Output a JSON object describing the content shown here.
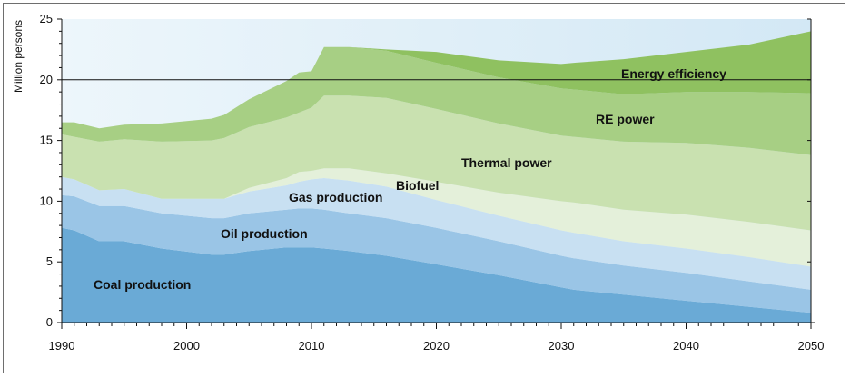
{
  "chart_data": {
    "type": "area",
    "stacked": true,
    "title": "",
    "xlabel": "",
    "ylabel": "Million persons",
    "xlim": [
      1990,
      2050
    ],
    "ylim": [
      0,
      25
    ],
    "x_ticks": [
      "1990",
      "2000",
      "2010",
      "2020",
      "2030",
      "2040",
      "2050"
    ],
    "y_ticks": [
      "0",
      "5",
      "10",
      "15",
      "20",
      "25"
    ],
    "reference_line_y": 20,
    "x": [
      1990,
      1991,
      1993,
      1995,
      1998,
      2002,
      2003,
      2005,
      2008,
      2009,
      2010,
      2011,
      2013,
      2016,
      2020,
      2025,
      2030,
      2031,
      2035,
      2040,
      2045,
      2050
    ],
    "series": [
      {
        "name": "Coal production",
        "color": "#6aaad6",
        "values": [
          7.8,
          7.6,
          6.7,
          6.7,
          6.1,
          5.6,
          5.6,
          5.9,
          6.2,
          6.2,
          6.2,
          6.1,
          5.9,
          5.5,
          4.8,
          3.9,
          2.9,
          2.7,
          2.3,
          1.8,
          1.3,
          0.8
        ]
      },
      {
        "name": "Oil production",
        "color": "#9ac5e6",
        "values": [
          2.7,
          2.8,
          2.9,
          2.9,
          2.9,
          3.0,
          3.0,
          3.1,
          3.1,
          3.2,
          3.2,
          3.2,
          3.1,
          3.1,
          3.0,
          2.8,
          2.6,
          2.6,
          2.4,
          2.3,
          2.1,
          1.9
        ]
      },
      {
        "name": "Gas production",
        "color": "#c8e0f2",
        "values": [
          1.5,
          1.4,
          1.3,
          1.4,
          1.2,
          1.6,
          1.6,
          1.8,
          2.0,
          2.2,
          2.4,
          2.6,
          2.7,
          2.6,
          2.3,
          2.1,
          2.1,
          2.1,
          2.0,
          2.0,
          2.0,
          1.9
        ]
      },
      {
        "name": "Biofuel",
        "color": "#e4f0da",
        "values": [
          0,
          0,
          0,
          0,
          0,
          0,
          0,
          0.3,
          0.6,
          0.8,
          0.7,
          0.8,
          1.0,
          1.1,
          1.5,
          1.9,
          2.4,
          2.5,
          2.6,
          2.8,
          2.9,
          3.0
        ]
      },
      {
        "name": "Thermal power",
        "color": "#c9e1b0",
        "values": [
          3.5,
          3.5,
          4.0,
          4.1,
          4.7,
          4.8,
          5.0,
          5.0,
          5.0,
          4.9,
          5.2,
          6.0,
          6.0,
          6.2,
          6.0,
          5.7,
          5.4,
          5.4,
          5.6,
          5.9,
          6.1,
          6.2
        ]
      },
      {
        "name": "RE power",
        "color": "#a7cf84",
        "values": [
          1.0,
          1.2,
          1.1,
          1.2,
          1.5,
          1.8,
          1.9,
          2.3,
          3.0,
          3.3,
          3.0,
          4.0,
          4.0,
          3.9,
          3.8,
          3.8,
          3.9,
          3.9,
          3.9,
          4.2,
          4.6,
          5.1
        ]
      },
      {
        "name": "Energy efficiency",
        "color": "#8fc160",
        "values": [
          0,
          0,
          0,
          0,
          0,
          0,
          0,
          0,
          0,
          0,
          0,
          0,
          0,
          0.1,
          0.9,
          1.4,
          2.0,
          2.2,
          2.9,
          3.3,
          3.9,
          5.1
        ]
      }
    ]
  }
}
